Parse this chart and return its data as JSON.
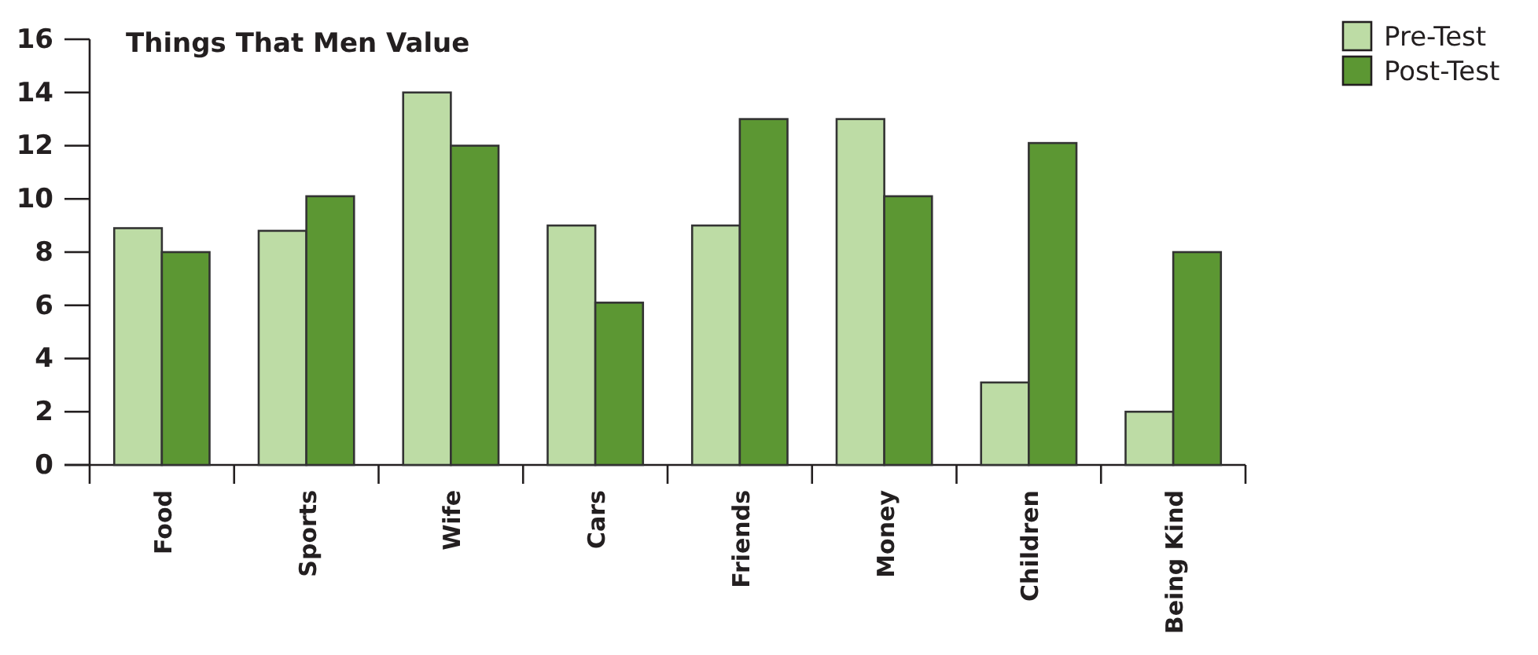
{
  "chart_data": {
    "type": "bar",
    "title": "Things That Men Value",
    "categories": [
      "Food",
      "Sports",
      "Wife",
      "Cars",
      "Friends",
      "Money",
      "Children",
      "Being Kind"
    ],
    "series": [
      {
        "name": "Pre-Test",
        "color": "#bddca5",
        "values": [
          8.9,
          8.8,
          14,
          9,
          9,
          13,
          3.1,
          2
        ]
      },
      {
        "name": "Post-Test",
        "color": "#5c9733",
        "values": [
          8,
          10.1,
          12,
          6.1,
          13,
          10.1,
          12.1,
          8
        ]
      }
    ],
    "ylim": [
      0,
      16
    ],
    "yticks": [
      0,
      2,
      4,
      6,
      8,
      10,
      12,
      14,
      16
    ],
    "grid": false,
    "legend": "top right"
  }
}
